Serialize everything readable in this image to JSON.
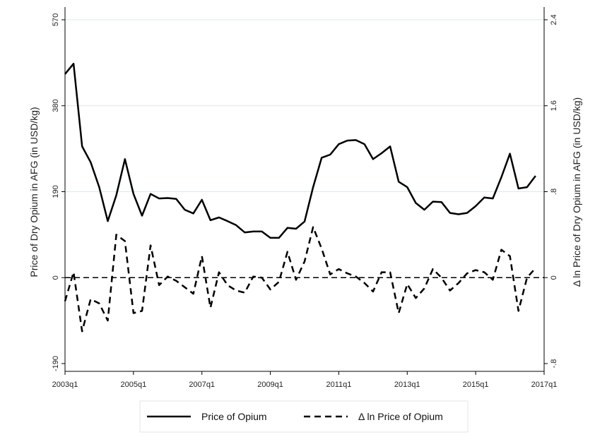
{
  "chart_data": {
    "type": "line",
    "ylabel_left": "Price of Dry Opium in AFG (in USD/kg)",
    "ylabel_right": "Δ ln Price of Dry Opium in AFG (in USD/kg)",
    "x_tick_labels": [
      "2003q1",
      "2005q1",
      "2007q1",
      "2009q1",
      "2011q1",
      "2013q1",
      "2015q1",
      "2017q1"
    ],
    "x_tick_values": [
      2003.0,
      2005.0,
      2007.0,
      2009.0,
      2011.0,
      2013.0,
      2015.0,
      2017.0
    ],
    "xlim": [
      2003.0,
      2017.0
    ],
    "ylim_left": [
      -190,
      570
    ],
    "ylim_right": [
      -0.8,
      2.4
    ],
    "y_ticks_left": [
      -190,
      0,
      190,
      380,
      570
    ],
    "y_tick_labels_left": [
      "-190",
      "0",
      "190",
      "380",
      "570"
    ],
    "y_ticks_right": [
      -0.8,
      0,
      0.8,
      1.6,
      2.4
    ],
    "y_tick_labels_right": [
      "-.8",
      "0",
      ".8",
      "1.6",
      "2.4"
    ],
    "grid": true,
    "legend_position": "bottom",
    "series": [
      {
        "name": "Price of Opium",
        "axis": "left",
        "style": "solid",
        "x": [
          2003.0,
          2003.25,
          2003.5,
          2003.75,
          2004.0,
          2004.25,
          2004.5,
          2004.75,
          2005.0,
          2005.25,
          2005.5,
          2005.75,
          2006.0,
          2006.25,
          2006.5,
          2006.75,
          2007.0,
          2007.25,
          2007.5,
          2007.75,
          2008.0,
          2008.25,
          2008.5,
          2008.75,
          2009.0,
          2009.25,
          2009.5,
          2009.75,
          2010.0,
          2010.25,
          2010.5,
          2010.75,
          2011.0,
          2011.25,
          2011.5,
          2011.75,
          2012.0,
          2012.25,
          2012.5,
          2012.75,
          2013.0,
          2013.25,
          2013.5,
          2013.75,
          2014.0,
          2014.25,
          2014.5,
          2014.75,
          2015.0,
          2015.25,
          2015.5,
          2015.75,
          2016.0,
          2016.25,
          2016.5,
          2016.75
        ],
        "values": [
          450,
          473,
          290,
          255,
          200,
          125,
          182,
          262,
          185,
          137,
          185,
          175,
          176,
          174,
          150,
          142,
          172,
          127,
          133,
          125,
          116,
          100,
          102,
          102,
          88,
          88,
          110,
          108,
          124,
          200,
          265,
          272,
          295,
          303,
          304,
          295,
          262,
          275,
          290,
          212,
          200,
          165,
          150,
          168,
          167,
          143,
          140,
          143,
          158,
          177,
          175,
          222,
          274,
          197,
          200,
          225
        ]
      },
      {
        "name": "Δ ln Price of Opium",
        "axis": "right",
        "style": "dashed",
        "x": [
          2003.0,
          2003.25,
          2003.5,
          2003.75,
          2004.0,
          2004.25,
          2004.5,
          2004.75,
          2005.0,
          2005.25,
          2005.5,
          2005.75,
          2006.0,
          2006.25,
          2006.5,
          2006.75,
          2007.0,
          2007.25,
          2007.5,
          2007.75,
          2008.0,
          2008.25,
          2008.5,
          2008.75,
          2009.0,
          2009.25,
          2009.5,
          2009.75,
          2010.0,
          2010.25,
          2010.5,
          2010.75,
          2011.0,
          2011.25,
          2011.5,
          2011.75,
          2012.0,
          2012.25,
          2012.5,
          2012.75,
          2013.0,
          2013.25,
          2013.5,
          2013.75,
          2014.0,
          2014.25,
          2014.5,
          2014.75,
          2015.0,
          2015.25,
          2015.5,
          2015.75,
          2016.0,
          2016.25,
          2016.5,
          2016.75
        ],
        "values": [
          -0.22,
          0.05,
          -0.5,
          -0.2,
          -0.24,
          -0.4,
          0.4,
          0.34,
          -0.33,
          -0.31,
          0.3,
          -0.07,
          0.01,
          -0.03,
          -0.09,
          -0.15,
          0.2,
          -0.28,
          0.05,
          -0.07,
          -0.12,
          -0.14,
          0.01,
          0.0,
          -0.11,
          -0.04,
          0.24,
          -0.02,
          0.15,
          0.47,
          0.27,
          0.03,
          0.08,
          0.04,
          0.01,
          -0.05,
          -0.13,
          0.05,
          0.05,
          -0.33,
          -0.06,
          -0.19,
          -0.1,
          0.08,
          0.0,
          -0.12,
          -0.05,
          0.04,
          0.07,
          0.05,
          -0.02,
          0.26,
          0.2,
          -0.31,
          0.0,
          0.09
        ]
      }
    ],
    "colors": {
      "line": "#000000",
      "grid": "#dbe8ec",
      "zero_line": "#000000",
      "axis": "#000000"
    }
  }
}
